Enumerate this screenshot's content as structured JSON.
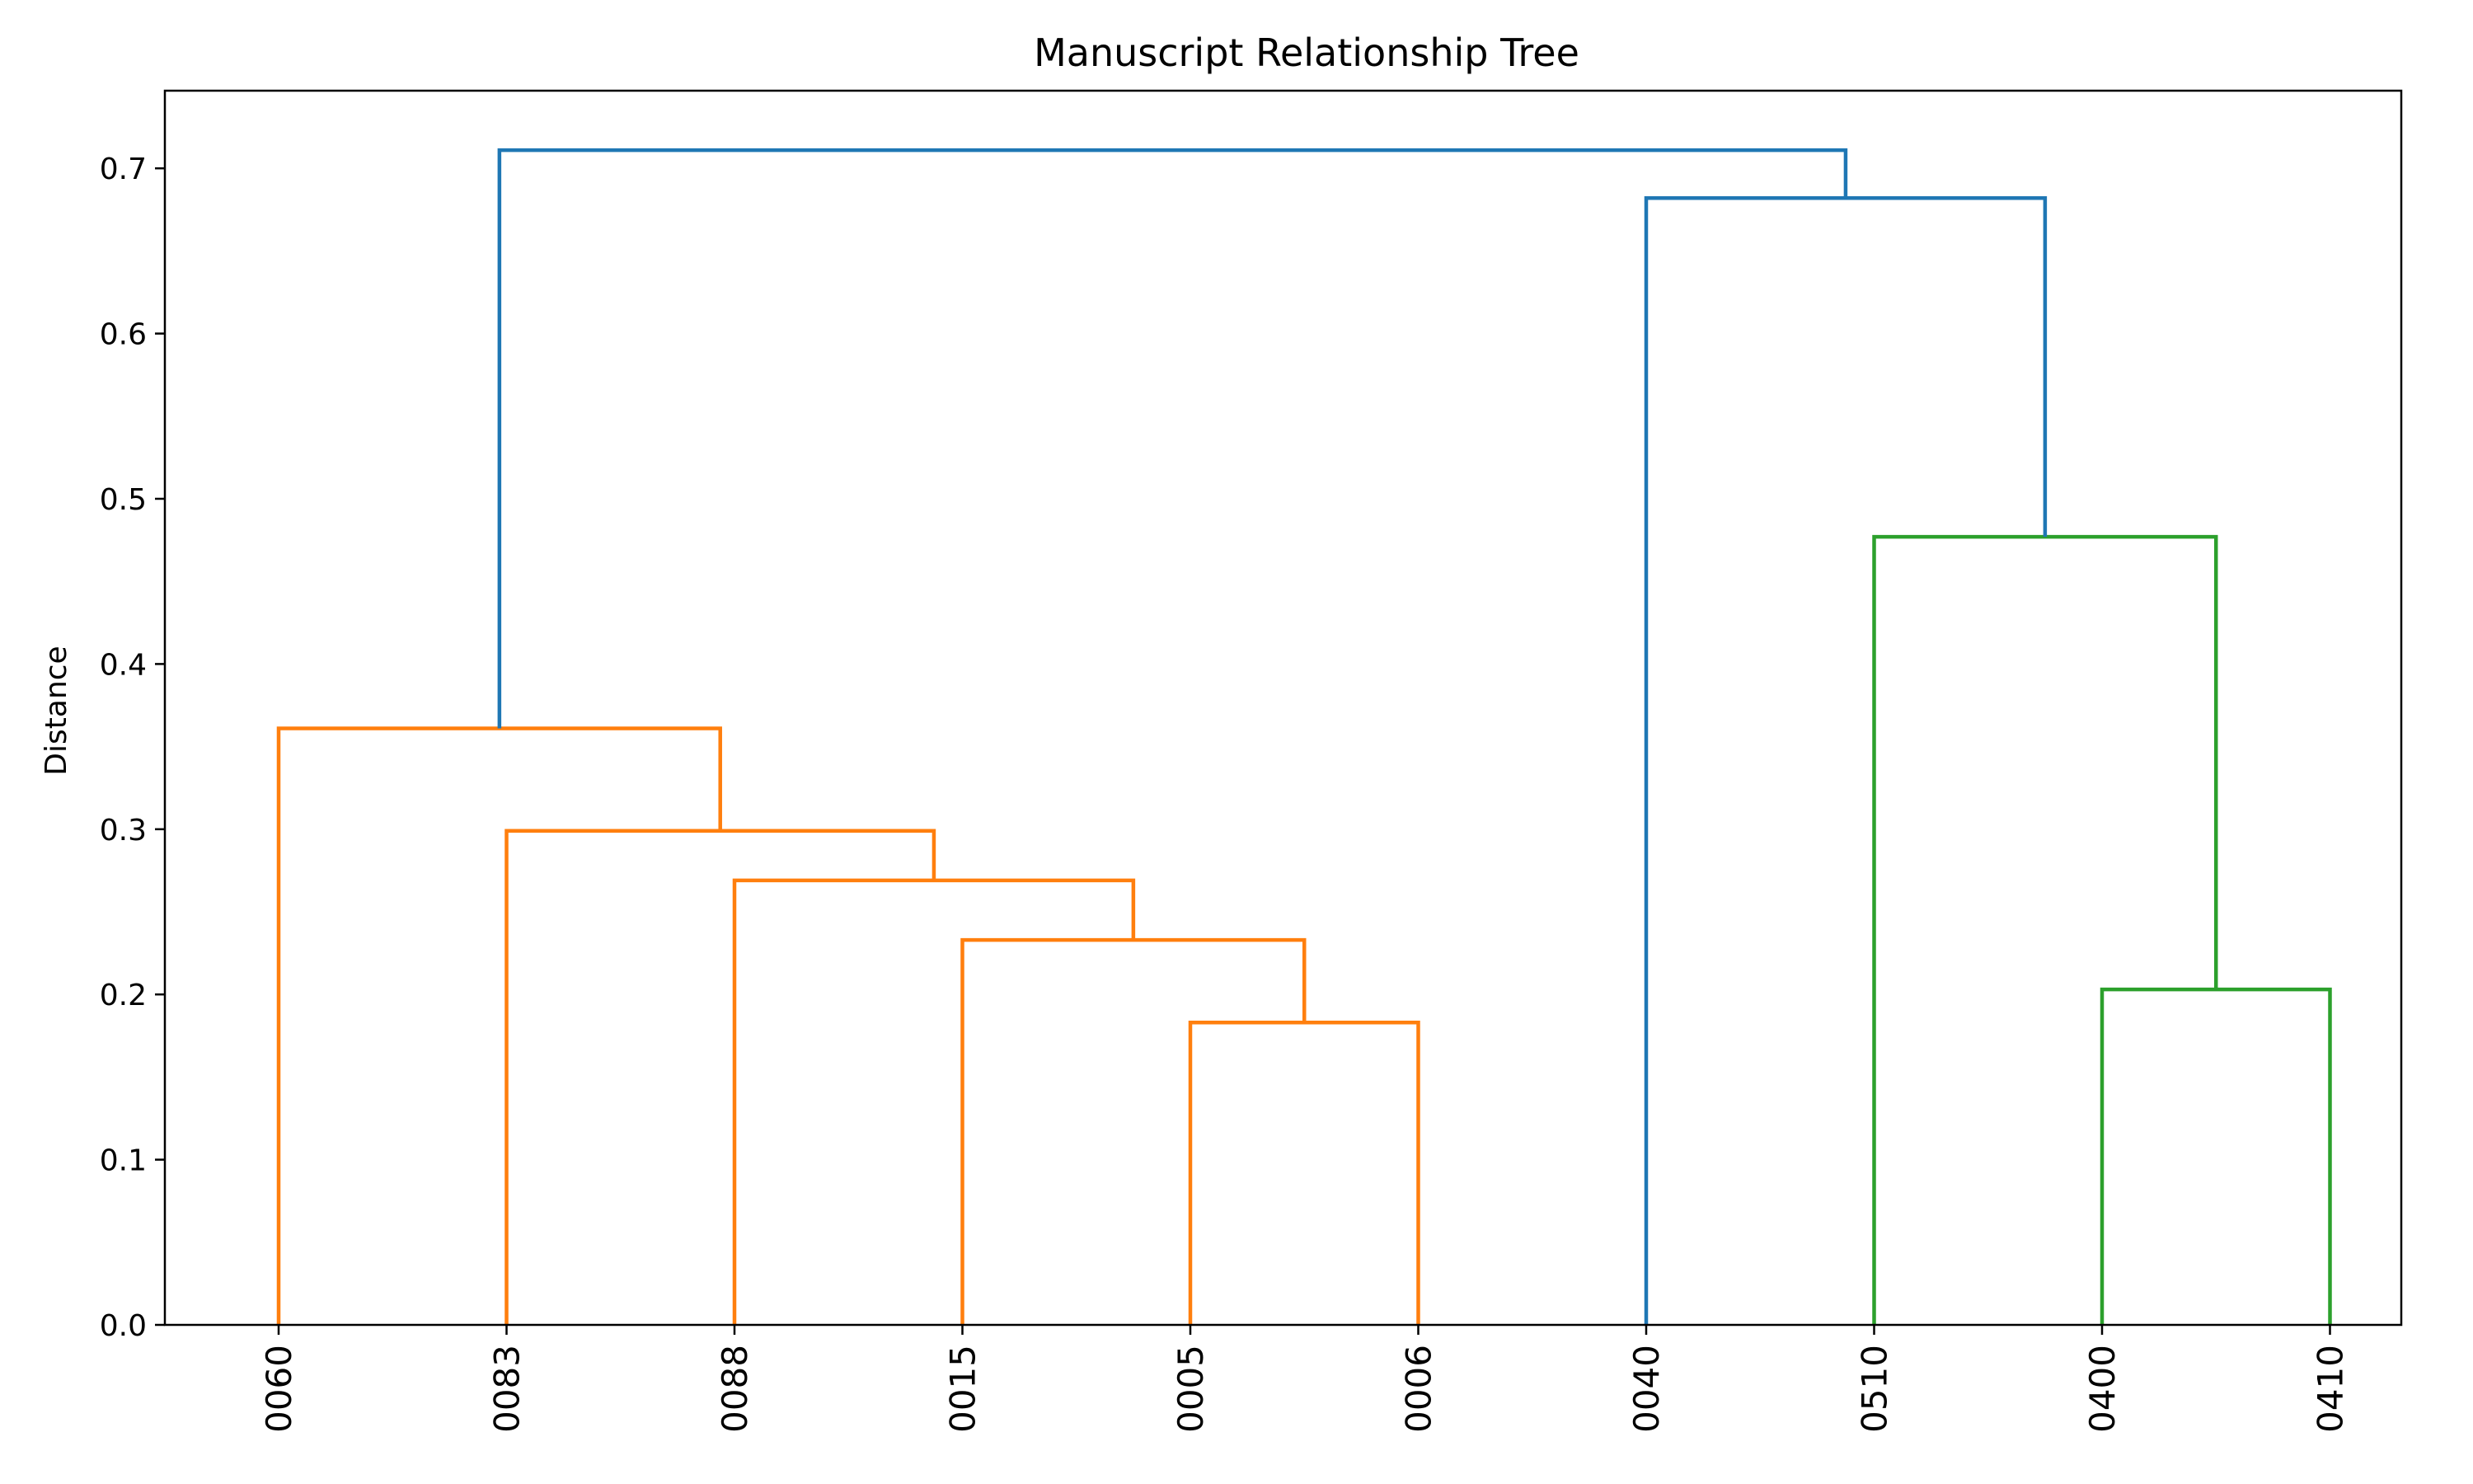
{
  "chart_data": {
    "type": "dendrogram",
    "title": "Manuscript Relationship Tree",
    "xlabel": "",
    "ylabel": "Distance",
    "ylim": [
      0,
      0.747
    ],
    "yticks": [
      "0.0",
      "0.1",
      "0.2",
      "0.3",
      "0.4",
      "0.5",
      "0.6",
      "0.7"
    ],
    "ytick_values": [
      0.0,
      0.1,
      0.2,
      0.3,
      0.4,
      0.5,
      0.6,
      0.7
    ],
    "leaves": [
      "0060",
      "0083",
      "0088",
      "0015",
      "0005",
      "0006",
      "0040",
      "0510",
      "0400",
      "0410"
    ],
    "colors": {
      "orange": "#ff7f0e",
      "green": "#2ca02c",
      "blue": "#1f77b4"
    },
    "merges": [
      {
        "left": "0005",
        "right": "0006",
        "distance": 0.183,
        "color": "orange"
      },
      {
        "left": "0015",
        "right": "0005+0006",
        "distance": 0.233,
        "color": "orange"
      },
      {
        "left": "0088",
        "right": "0015+0005+0006",
        "distance": 0.269,
        "color": "orange"
      },
      {
        "left": "0083",
        "right": "0088+0015+0005+0006",
        "distance": 0.299,
        "color": "orange"
      },
      {
        "left": "0060",
        "right": "0083+0088+0015+0005+0006",
        "distance": 0.361,
        "color": "orange"
      },
      {
        "left": "0400",
        "right": "0410",
        "distance": 0.203,
        "color": "green"
      },
      {
        "left": "0510",
        "right": "0400+0410",
        "distance": 0.477,
        "color": "green"
      },
      {
        "left": "0040",
        "right": "0510+0400+0410",
        "distance": 0.682,
        "color": "blue"
      },
      {
        "left": "0060+0083+0088+0015+0005+0006",
        "right": "0040+0510+0400+0410",
        "distance": 0.711,
        "color": "blue"
      }
    ],
    "grid": false,
    "legend": "none"
  }
}
